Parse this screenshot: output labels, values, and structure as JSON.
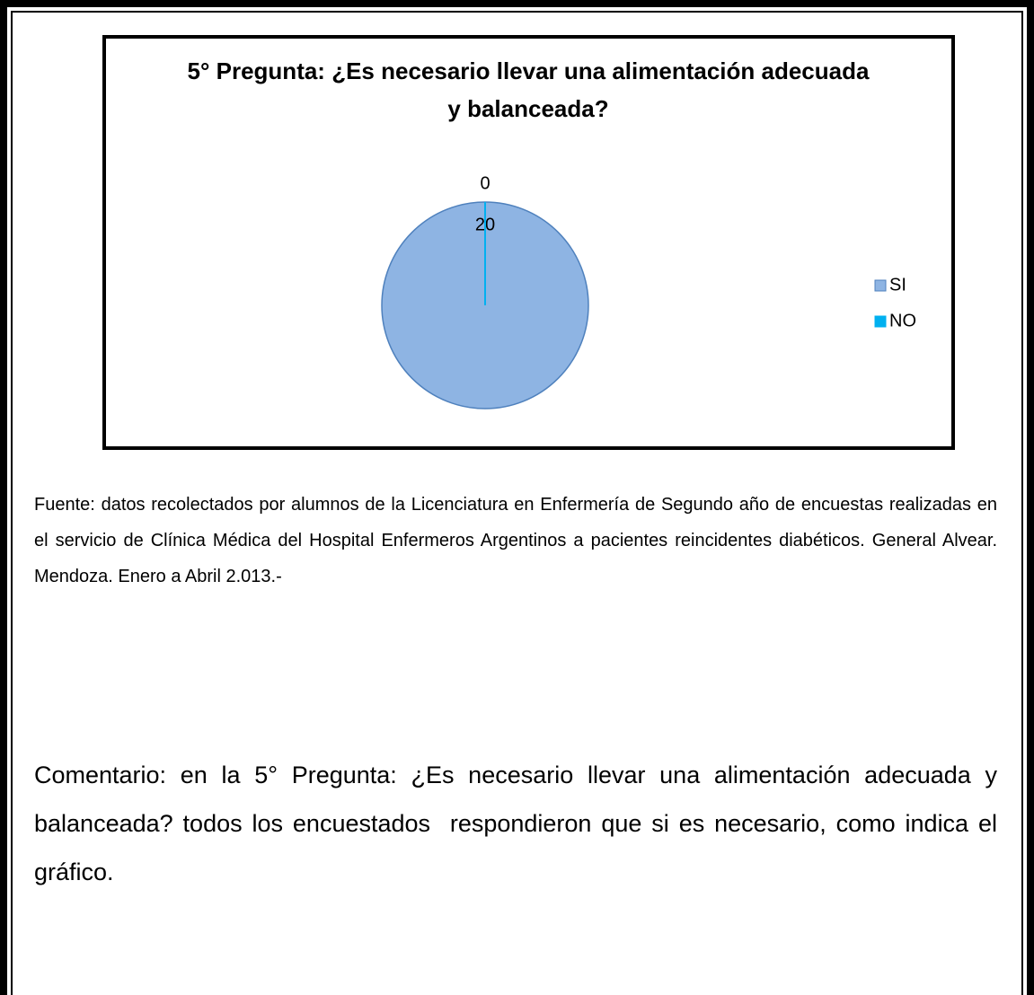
{
  "chart_data": {
    "type": "pie",
    "title": "5° Pregunta: ¿Es necesario llevar una alimentación adecuada y  balanceada?",
    "categories": [
      "SI",
      "NO"
    ],
    "values": [
      20,
      0
    ],
    "colors": [
      "#8eb4e3",
      "#00b0f0"
    ],
    "legend": "right"
  },
  "source": "Fuente: datos recolectados por alumnos de la Licenciatura en Enfermería de Segundo año de encuestas realizadas en el servicio de Clínica Médica del Hospital Enfermeros Argentinos a pacientes reincidentes diabéticos. General Alvear. Mendoza. Enero a Abril 2.013.-",
  "comment": "Comentario: en la 5° Pregunta: ¿Es necesario llevar una alimentación adecuada y  balanceada? todos los encuestados  respondieron que si es necesario, como indica el gráfico."
}
